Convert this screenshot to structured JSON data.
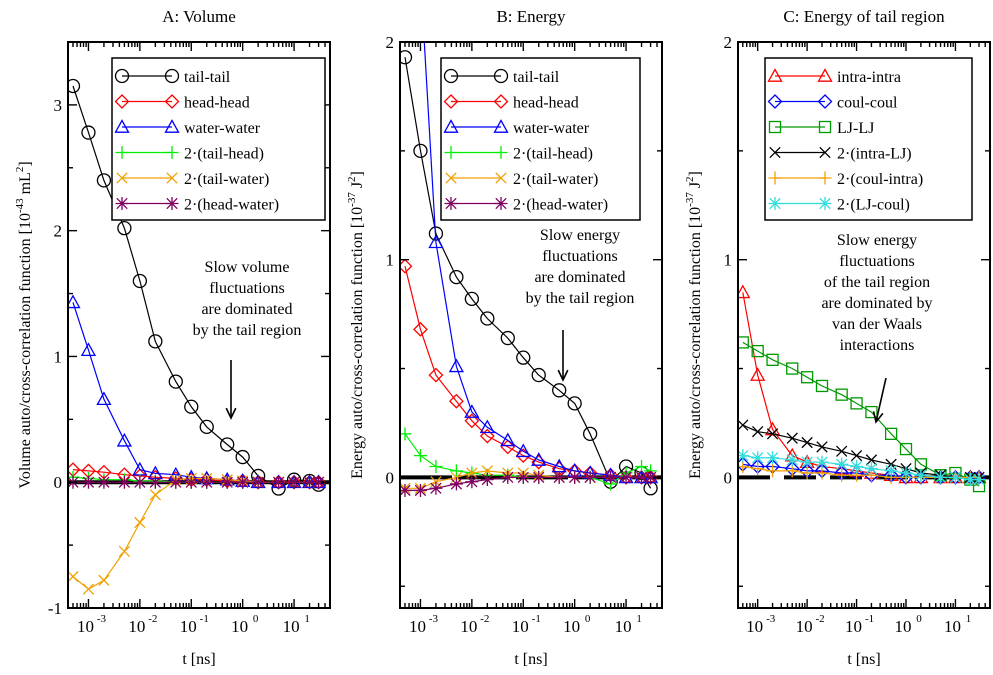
{
  "chart_data": [
    {
      "type": "line",
      "title": "A: Volume",
      "xlabel": "t [ns]",
      "ylabel": "Volume auto/cross-correlation function [10",
      "ylabel_exp": "-43",
      "ylabel_unit": " mL",
      "ylabel_unit_exp": "2",
      "ylabel_end": "]",
      "x_scale": "log",
      "xlim": [
        0.0004,
        50
      ],
      "ylim": [
        -1,
        3.5
      ],
      "yticks": [
        {
          "v": -1,
          "label": "-1"
        },
        {
          "v": 0,
          "label": "0"
        },
        {
          "v": 1,
          "label": "1"
        },
        {
          "v": 2,
          "label": "2"
        },
        {
          "v": 3,
          "label": "3"
        }
      ],
      "xticks": [
        {
          "e": -3,
          "label": "10",
          "exp": "-3"
        },
        {
          "e": -2,
          "label": "10",
          "exp": "-2"
        },
        {
          "e": -1,
          "label": "10",
          "exp": "-1"
        },
        {
          "e": 0,
          "label": "10",
          "exp": "0"
        },
        {
          "e": 1,
          "label": "10",
          "exp": "1"
        }
      ],
      "legend_position": "top-right",
      "annotation": [
        "Slow volume",
        "fluctuations",
        "are dominated",
        "by the tail region"
      ],
      "series": [
        {
          "name": "tail-tail",
          "color": "#000000",
          "marker": "circle",
          "x": [
            0.0005,
            0.001,
            0.002,
            0.005,
            0.01,
            0.02,
            0.05,
            0.1,
            0.2,
            0.5,
            1,
            2,
            5,
            10,
            20,
            30
          ],
          "y": [
            3.15,
            2.78,
            2.4,
            2.02,
            1.6,
            1.12,
            0.8,
            0.6,
            0.44,
            0.3,
            0.2,
            0.05,
            -0.05,
            0.02,
            0.01,
            -0.02
          ]
        },
        {
          "name": "head-head",
          "color": "#ff0000",
          "marker": "diamond",
          "x": [
            0.0005,
            0.001,
            0.002,
            0.005,
            0.01,
            0.02,
            0.05,
            0.1,
            0.2,
            0.5,
            1,
            2,
            5,
            10,
            20,
            30
          ],
          "y": [
            0.1,
            0.09,
            0.08,
            0.06,
            0.05,
            0.04,
            0.03,
            0.02,
            0.02,
            0.01,
            0.01,
            0,
            0,
            0,
            0,
            0
          ]
        },
        {
          "name": "water-water",
          "color": "#0000ff",
          "marker": "triangle",
          "x": [
            0.0005,
            0.001,
            0.002,
            0.005,
            0.01,
            0.02,
            0.05,
            0.1,
            0.2,
            0.5,
            1,
            2,
            5,
            10,
            20,
            30
          ],
          "y": [
            1.43,
            1.05,
            0.66,
            0.33,
            0.1,
            0.07,
            0.06,
            0.04,
            0.03,
            0.02,
            0.01,
            0,
            0,
            0,
            0,
            0
          ]
        },
        {
          "name": "2·(tail-head)",
          "color": "#00ee00",
          "marker": "plus",
          "x": [
            0.0005,
            0.001,
            0.002,
            0.005,
            0.01,
            0.02,
            0.05,
            0.1,
            0.2,
            0.5,
            1,
            2,
            5,
            10,
            20,
            30
          ],
          "y": [
            0.04,
            0.03,
            0.02,
            0.02,
            0.01,
            0.01,
            0,
            0,
            0,
            0,
            0,
            0,
            0,
            0,
            0,
            0
          ]
        },
        {
          "name": "2·(tail-water)",
          "color": "#f0a000",
          "marker": "x",
          "x": [
            0.0005,
            0.001,
            0.002,
            0.005,
            0.01,
            0.02,
            0.05,
            0.1,
            0.2,
            0.5,
            1,
            2,
            5,
            10,
            20,
            30
          ],
          "y": [
            -0.75,
            -0.85,
            -0.78,
            -0.55,
            -0.32,
            -0.1,
            0.02,
            0.03,
            0.03,
            0.02,
            0.01,
            0,
            0,
            0,
            0,
            0
          ]
        },
        {
          "name": "2·(head-water)",
          "color": "#800060",
          "marker": "star",
          "x": [
            0.0005,
            0.001,
            0.002,
            0.005,
            0.01,
            0.02,
            0.05,
            0.1,
            0.2,
            0.5,
            1,
            2,
            5,
            10,
            20,
            30
          ],
          "y": [
            0,
            0,
            0,
            0,
            0,
            0,
            0,
            0,
            0,
            0,
            0,
            0,
            0,
            0,
            0,
            0
          ]
        }
      ]
    },
    {
      "type": "line",
      "title": "B: Energy",
      "xlabel": "t [ns]",
      "ylabel": "Energy auto/cross-correlation function [10",
      "ylabel_exp": "-37",
      "ylabel_unit": " J",
      "ylabel_unit_exp": "2",
      "ylabel_end": "]",
      "x_scale": "log",
      "xlim": [
        0.0004,
        50
      ],
      "ylim": [
        -0.6,
        2
      ],
      "yticks": [
        {
          "v": 0,
          "label": "0"
        },
        {
          "v": 1,
          "label": "1"
        },
        {
          "v": 2,
          "label": "2"
        }
      ],
      "xticks": [
        {
          "e": -3,
          "label": "10",
          "exp": "-3"
        },
        {
          "e": -2,
          "label": "10",
          "exp": "-2"
        },
        {
          "e": -1,
          "label": "10",
          "exp": "-1"
        },
        {
          "e": 0,
          "label": "10",
          "exp": "0"
        },
        {
          "e": 1,
          "label": "10",
          "exp": "1"
        }
      ],
      "legend_position": "top-right",
      "annotation": [
        "Slow energy",
        "fluctuations",
        "are dominated",
        "by the tail region"
      ],
      "series": [
        {
          "name": "tail-tail",
          "color": "#000000",
          "marker": "circle",
          "x": [
            0.0005,
            0.001,
            0.002,
            0.005,
            0.01,
            0.02,
            0.05,
            0.1,
            0.2,
            0.5,
            1,
            2,
            5,
            10,
            20,
            30
          ],
          "y": [
            1.93,
            1.5,
            1.12,
            0.92,
            0.82,
            0.73,
            0.64,
            0.55,
            0.47,
            0.4,
            0.34,
            0.2,
            -0.02,
            0.05,
            0.02,
            -0.05
          ]
        },
        {
          "name": "head-head",
          "color": "#ff0000",
          "marker": "diamond",
          "x": [
            0.0005,
            0.001,
            0.002,
            0.005,
            0.01,
            0.02,
            0.05,
            0.1,
            0.2,
            0.5,
            1,
            2,
            5,
            10,
            20,
            30
          ],
          "y": [
            0.97,
            0.68,
            0.47,
            0.35,
            0.26,
            0.19,
            0.14,
            0.1,
            0.07,
            0.04,
            0.03,
            0.02,
            0.01,
            0,
            0,
            0
          ]
        },
        {
          "name": "water-water",
          "color": "#0000ff",
          "marker": "triangle",
          "x": [
            0.0005,
            0.001,
            0.002,
            0.005,
            0.01,
            0.02,
            0.05,
            0.1,
            0.2,
            0.5,
            1,
            2,
            5,
            10,
            20,
            30
          ],
          "y": [
            2.7,
            2.3,
            1.08,
            0.51,
            0.3,
            0.23,
            0.17,
            0.12,
            0.08,
            0.05,
            0.03,
            0.02,
            0.01,
            0,
            0,
            0
          ]
        },
        {
          "name": "2·(tail-head)",
          "color": "#00ee00",
          "marker": "plus",
          "x": [
            0.0005,
            0.001,
            0.002,
            0.005,
            0.01,
            0.02,
            0.05,
            0.1,
            0.2,
            0.5,
            1,
            2,
            5,
            10,
            20,
            30
          ],
          "y": [
            0.2,
            0.1,
            0.05,
            0.03,
            0.02,
            0.01,
            0.01,
            0,
            0,
            0,
            0,
            0,
            -0.03,
            0.02,
            0.05,
            0.03
          ]
        },
        {
          "name": "2·(tail-water)",
          "color": "#f0a000",
          "marker": "x",
          "x": [
            0.0005,
            0.001,
            0.002,
            0.005,
            0.01,
            0.02,
            0.05,
            0.1,
            0.2,
            0.5,
            1,
            2,
            5,
            10,
            20,
            30
          ],
          "y": [
            -0.05,
            -0.05,
            -0.02,
            0,
            0.02,
            0.03,
            0.02,
            0.02,
            0.01,
            0,
            0,
            0,
            0,
            0,
            0,
            0
          ]
        },
        {
          "name": "2·(head-water)",
          "color": "#800060",
          "marker": "star",
          "x": [
            0.0005,
            0.001,
            0.002,
            0.005,
            0.01,
            0.02,
            0.05,
            0.1,
            0.2,
            0.5,
            1,
            2,
            5,
            10,
            20,
            30
          ],
          "y": [
            -0.06,
            -0.06,
            -0.05,
            -0.03,
            -0.02,
            -0.01,
            0,
            0,
            0,
            0,
            0,
            0,
            0,
            0,
            0,
            0
          ]
        }
      ]
    },
    {
      "type": "line",
      "title": "C: Energy of tail region",
      "xlabel": "t [ns]",
      "ylabel": "Energy auto/cross-correlation function [10",
      "ylabel_exp": "-37",
      "ylabel_unit": " J",
      "ylabel_unit_exp": "2",
      "ylabel_end": "]",
      "x_scale": "log",
      "xlim": [
        0.0004,
        50
      ],
      "ylim": [
        -0.6,
        2
      ],
      "yticks": [
        {
          "v": 0,
          "label": "0"
        },
        {
          "v": 1,
          "label": "1"
        },
        {
          "v": 2,
          "label": "2"
        }
      ],
      "xticks": [
        {
          "e": -3,
          "label": "10",
          "exp": "-3"
        },
        {
          "e": -2,
          "label": "10",
          "exp": "-2"
        },
        {
          "e": -1,
          "label": "10",
          "exp": "-1"
        },
        {
          "e": 0,
          "label": "10",
          "exp": "0"
        },
        {
          "e": 1,
          "label": "10",
          "exp": "1"
        }
      ],
      "legend_position": "top-right",
      "annotation": [
        "Slow energy",
        "fluctuations",
        "of the tail region",
        "are dominated by",
        "van der Waals",
        "interactions"
      ],
      "series": [
        {
          "name": "intra-intra",
          "color": "#ff0000",
          "marker": "triangle",
          "x": [
            0.0005,
            0.001,
            0.002,
            0.005,
            0.01,
            0.02,
            0.05,
            0.1,
            0.2,
            0.5,
            1,
            2,
            5,
            10,
            20,
            30
          ],
          "y": [
            0.85,
            0.47,
            0.22,
            0.1,
            0.07,
            0.05,
            0.04,
            0.03,
            0.02,
            0.01,
            0,
            0,
            0,
            0,
            0,
            0
          ]
        },
        {
          "name": "coul-coul",
          "color": "#0000ff",
          "marker": "diamond",
          "x": [
            0.0005,
            0.001,
            0.002,
            0.005,
            0.01,
            0.02,
            0.05,
            0.1,
            0.2,
            0.5,
            1,
            2,
            5,
            10,
            20,
            30
          ],
          "y": [
            0.06,
            0.05,
            0.05,
            0.04,
            0.03,
            0.03,
            0.02,
            0.02,
            0.01,
            0.01,
            0,
            0,
            0,
            0,
            0,
            0
          ]
        },
        {
          "name": "LJ-LJ",
          "color": "#009900",
          "marker": "square",
          "x": [
            0.0005,
            0.001,
            0.002,
            0.005,
            0.01,
            0.02,
            0.05,
            0.1,
            0.2,
            0.5,
            1,
            2,
            5,
            10,
            20,
            30
          ],
          "y": [
            0.62,
            0.58,
            0.54,
            0.5,
            0.46,
            0.42,
            0.38,
            0.34,
            0.3,
            0.2,
            0.13,
            0.06,
            0.01,
            0.02,
            -0.01,
            -0.04
          ]
        },
        {
          "name": "2·(intra-LJ)",
          "color": "#000000",
          "marker": "x",
          "x": [
            0.0005,
            0.001,
            0.002,
            0.005,
            0.01,
            0.02,
            0.05,
            0.1,
            0.2,
            0.5,
            1,
            2,
            5,
            10,
            20,
            30
          ],
          "y": [
            0.24,
            0.21,
            0.2,
            0.18,
            0.16,
            0.14,
            0.12,
            0.1,
            0.08,
            0.06,
            0.04,
            0.02,
            0.01,
            0,
            0,
            0
          ]
        },
        {
          "name": "2·(coul-intra)",
          "color": "#f0a000",
          "marker": "plus",
          "x": [
            0.0005,
            0.001,
            0.002,
            0.005,
            0.01,
            0.02,
            0.05,
            0.1,
            0.2,
            0.5,
            1,
            2,
            5,
            10,
            20,
            30
          ],
          "y": [
            0.05,
            0.04,
            0.03,
            0.03,
            0.02,
            0.02,
            0.01,
            0.01,
            0.01,
            0,
            0,
            0,
            0,
            0,
            0,
            0
          ]
        },
        {
          "name": "2·(LJ-coul)",
          "color": "#33dddd",
          "marker": "star",
          "x": [
            0.0005,
            0.001,
            0.002,
            0.005,
            0.01,
            0.02,
            0.05,
            0.1,
            0.2,
            0.5,
            1,
            2,
            5,
            10,
            20,
            30
          ],
          "y": [
            0.1,
            0.09,
            0.09,
            0.08,
            0.07,
            0.07,
            0.06,
            0.05,
            0.04,
            0.03,
            0.02,
            0.01,
            0,
            0,
            -0.01,
            -0.01
          ]
        }
      ]
    }
  ]
}
